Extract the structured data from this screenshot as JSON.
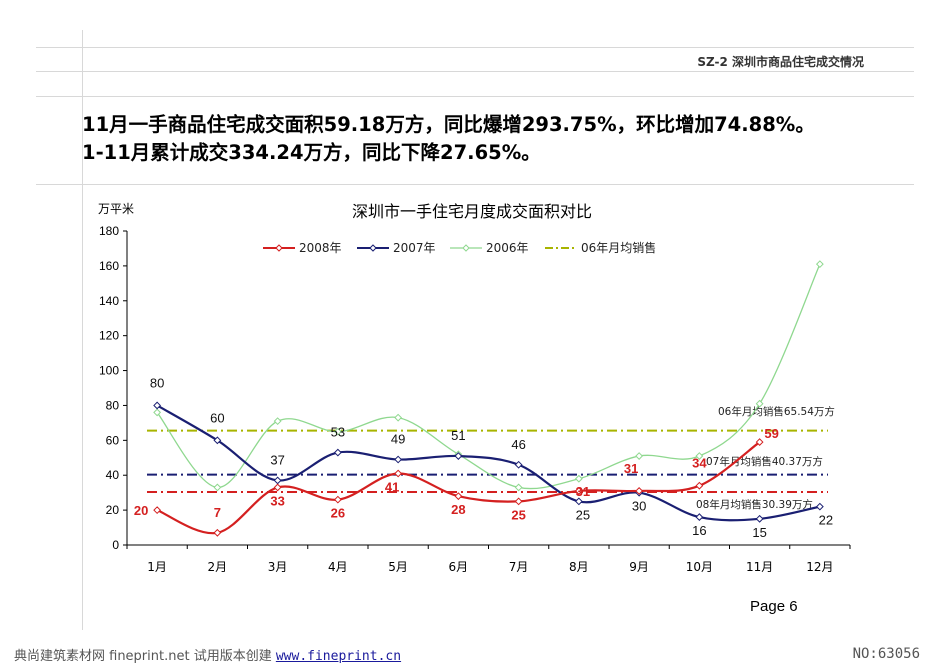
{
  "header": {
    "section_title": "SZ-2  深圳市商品住宅成交情况"
  },
  "headline": {
    "line1": "11月一手商品住宅成交面积59.18万方，同比爆增293.75%，环比增加74.88%。",
    "line2": "1-11月累计成交334.24万方，同比下降27.65%。"
  },
  "chart_data": {
    "type": "line",
    "title": "深圳市一手住宅月度成交面积对比",
    "ylabel": "万平米",
    "xlabel": "",
    "categories": [
      "1月",
      "2月",
      "3月",
      "4月",
      "5月",
      "6月",
      "7月",
      "8月",
      "9月",
      "10月",
      "11月",
      "12月"
    ],
    "ylim": [
      0,
      180
    ],
    "yticks": [
      0,
      20,
      40,
      60,
      80,
      100,
      120,
      140,
      160,
      180
    ],
    "grid": false,
    "legend_position": "top",
    "series": [
      {
        "name": "2008年",
        "color": "#d42020",
        "values": [
          20,
          7,
          33,
          26,
          41,
          28,
          25,
          31,
          31,
          34,
          59,
          null
        ],
        "labels": [
          "20",
          "7",
          "33",
          "26",
          "41",
          "28",
          "25",
          "31",
          "31",
          "34",
          "59",
          null
        ]
      },
      {
        "name": "2007年",
        "color": "#1a1f72",
        "values": [
          80,
          60,
          37,
          53,
          49,
          51,
          46,
          25,
          30,
          16,
          15,
          22
        ],
        "labels": [
          "80",
          "60",
          "37",
          "53",
          "49",
          "51",
          "46",
          "25",
          "30",
          "16",
          "15",
          "22"
        ]
      },
      {
        "name": "2006年",
        "color": "#8fd88f",
        "values": [
          76,
          33,
          71,
          65,
          73,
          52,
          33,
          38,
          51,
          51,
          81,
          161
        ],
        "labels": [
          null,
          null,
          null,
          null,
          null,
          null,
          null,
          null,
          null,
          null,
          null,
          null
        ]
      },
      {
        "name": "06年月均销售",
        "color": "#a8b400",
        "values": [
          65.54,
          65.54,
          65.54,
          65.54,
          65.54,
          65.54,
          65.54,
          65.54,
          65.54,
          65.54,
          65.54,
          65.54
        ]
      }
    ],
    "average_lines": [
      {
        "label": "06年月均销售65.54万方",
        "value": 65.54,
        "color": "#a8b400"
      },
      {
        "label": "07年月均销售40.37万方",
        "value": 40.37,
        "color": "#1a1f72"
      },
      {
        "label": "08年月均销售30.39万方",
        "value": 30.39,
        "color": "#d42020"
      }
    ]
  },
  "footer": {
    "page_number": "Page 6",
    "watermark_left_text": "典尚建筑素材网 fineprint.net 试用版本创建",
    "watermark_left_link": "www.fineprint.cn",
    "watermark_right": "NO:63056"
  }
}
